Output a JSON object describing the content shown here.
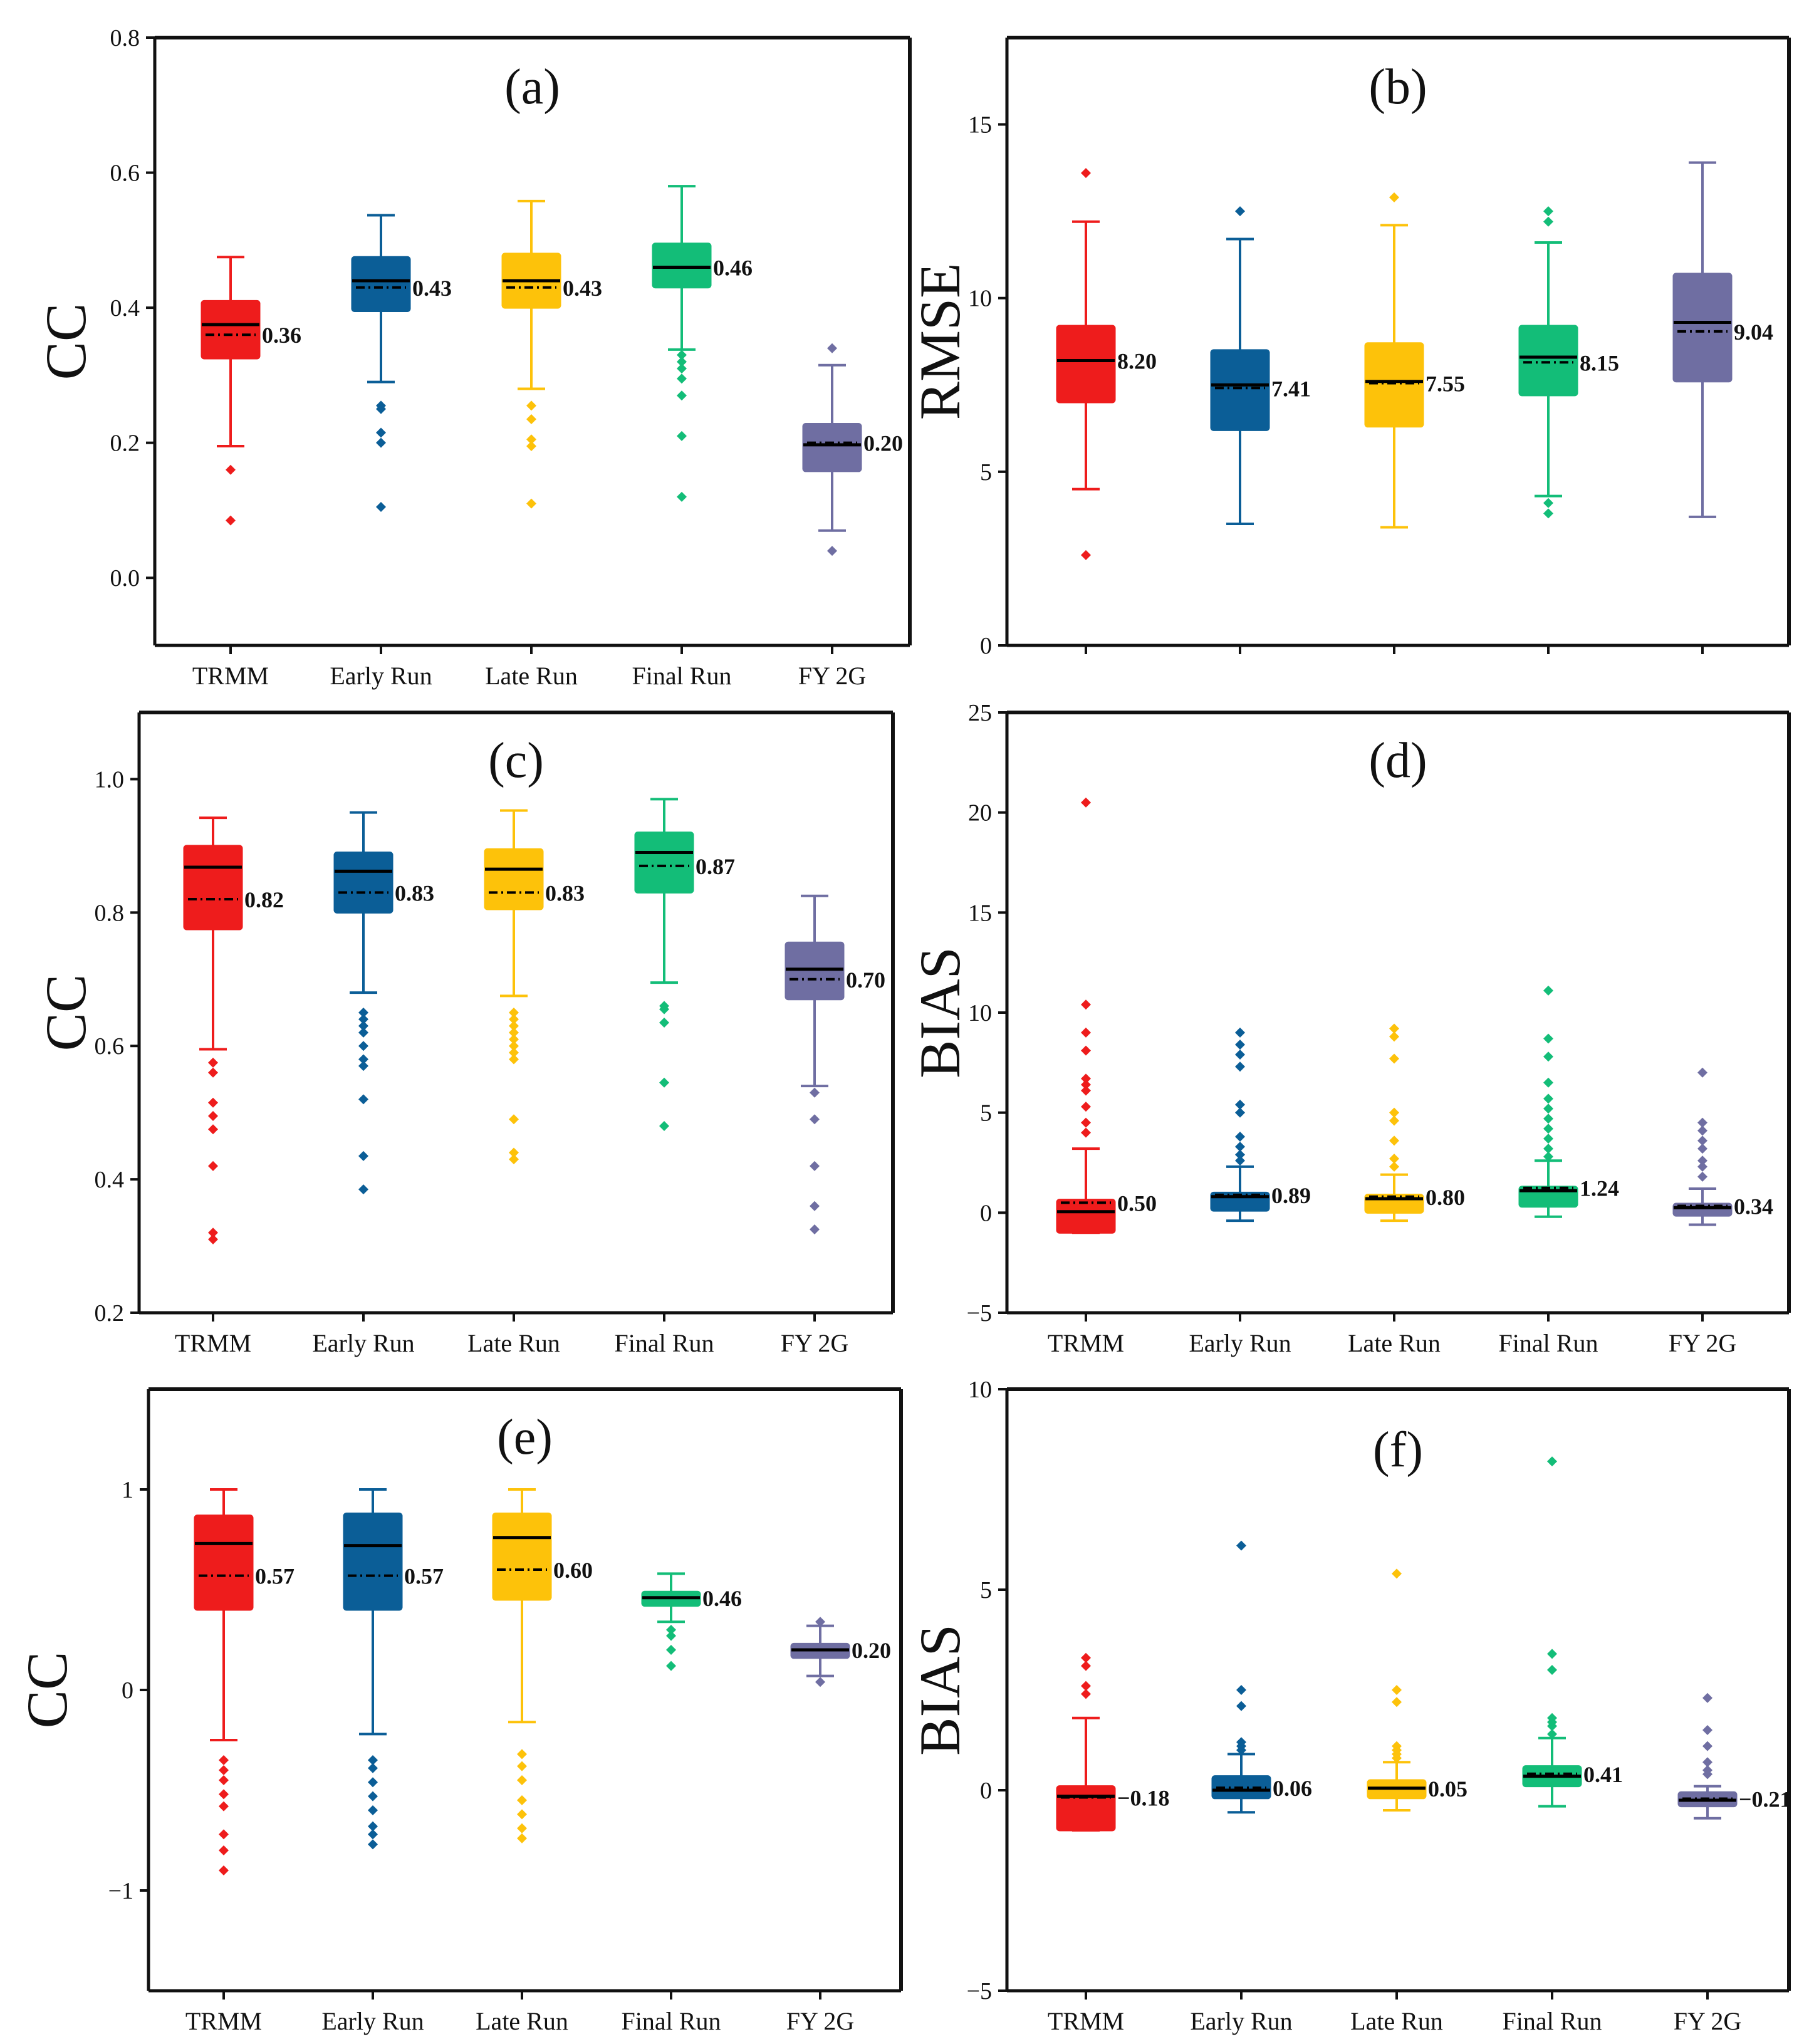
{
  "colors": {
    "TRMM": "#ee1c1c",
    "Early Run": "#0b5e97",
    "Late Run": "#fdc20a",
    "Final Run": "#13bd78",
    "FY 2G": "#6f6ea2"
  },
  "chart_data": [
    {
      "id": "a",
      "type": "box",
      "title": "(a)",
      "xlabel": "",
      "ylabel": "CC",
      "ylim": [
        -0.1,
        0.8
      ],
      "yticks": [
        0.0,
        0.2,
        0.4,
        0.6,
        0.8
      ],
      "ytick_labels": [
        "0.0",
        "0.2",
        "0.4",
        "0.6",
        "0.8"
      ],
      "ytick_side": "outer",
      "categories": [
        "TRMM",
        "Early Run",
        "Late Run",
        "Final Run",
        "FY 2G"
      ],
      "boxes": [
        {
          "q1": 0.325,
          "median": 0.375,
          "q3": 0.41,
          "whislo": 0.195,
          "whishi": 0.475,
          "mean": 0.36,
          "label": "0.36",
          "outliers": [
            0.16,
            0.085
          ]
        },
        {
          "q1": 0.395,
          "median": 0.44,
          "q3": 0.475,
          "whislo": 0.29,
          "whishi": 0.537,
          "mean": 0.43,
          "label": "0.43",
          "outliers": [
            0.255,
            0.25,
            0.215,
            0.2,
            0.105
          ]
        },
        {
          "q1": 0.4,
          "median": 0.44,
          "q3": 0.48,
          "whislo": 0.28,
          "whishi": 0.558,
          "mean": 0.43,
          "label": "0.43",
          "outliers": [
            0.255,
            0.235,
            0.205,
            0.195,
            0.11
          ]
        },
        {
          "q1": 0.43,
          "median": 0.46,
          "q3": 0.495,
          "whislo": 0.338,
          "whishi": 0.58,
          "mean": 0.46,
          "label": "0.46",
          "outliers": [
            0.33,
            0.32,
            0.31,
            0.295,
            0.27,
            0.21,
            0.12
          ]
        },
        {
          "q1": 0.158,
          "median": 0.197,
          "q3": 0.228,
          "whislo": 0.07,
          "whishi": 0.315,
          "mean": 0.2,
          "label": "0.20",
          "outliers": [
            0.34,
            0.04
          ]
        }
      ]
    },
    {
      "id": "b",
      "type": "box",
      "title": "(b)",
      "xlabel": "",
      "ylabel": "RMSE",
      "ylim": [
        0,
        17.5
      ],
      "yticks": [
        0,
        5,
        10,
        15
      ],
      "ytick_labels": [
        "0",
        "5",
        "10",
        "15"
      ],
      "ytick_side": "outer",
      "categories": [
        "",
        "",
        "",
        "",
        ""
      ],
      "boxes": [
        {
          "q1": 7.0,
          "median": 8.2,
          "q3": 9.2,
          "whislo": 4.5,
          "whishi": 12.2,
          "mean": 8.2,
          "label": "8.20",
          "outliers": [
            13.6,
            2.6
          ]
        },
        {
          "q1": 6.2,
          "median": 7.5,
          "q3": 8.5,
          "whislo": 3.5,
          "whishi": 11.7,
          "mean": 7.41,
          "label": "7.41",
          "outliers": [
            12.5
          ]
        },
        {
          "q1": 6.3,
          "median": 7.6,
          "q3": 8.7,
          "whislo": 3.4,
          "whishi": 12.1,
          "mean": 7.55,
          "label": "7.55",
          "outliers": [
            12.9
          ]
        },
        {
          "q1": 7.2,
          "median": 8.3,
          "q3": 9.2,
          "whislo": 4.3,
          "whishi": 11.6,
          "mean": 8.15,
          "label": "8.15",
          "outliers": [
            12.5,
            12.2,
            4.1,
            3.8
          ]
        },
        {
          "q1": 7.6,
          "median": 9.3,
          "q3": 10.7,
          "whislo": 3.7,
          "whishi": 13.9,
          "mean": 9.04,
          "label": "9.04",
          "outliers": []
        }
      ]
    },
    {
      "id": "c",
      "type": "box",
      "title": "(c)",
      "xlabel": "",
      "ylabel": "CC",
      "ylim": [
        0.2,
        1.1
      ],
      "yticks": [
        0.2,
        0.4,
        0.6,
        0.8,
        1.0
      ],
      "ytick_labels": [
        "0.2",
        "0.4",
        "0.6",
        "0.8",
        "1.0"
      ],
      "ytick_side": "outer",
      "categories": [
        "TRMM",
        "Early Run",
        "Late Run",
        "Final Run",
        "FY 2G"
      ],
      "boxes": [
        {
          "q1": 0.775,
          "median": 0.868,
          "q3": 0.9,
          "whislo": 0.595,
          "whishi": 0.942,
          "mean": 0.82,
          "label": "0.82",
          "outliers": [
            0.575,
            0.56,
            0.515,
            0.495,
            0.475,
            0.42,
            0.32,
            0.31
          ]
        },
        {
          "q1": 0.8,
          "median": 0.862,
          "q3": 0.89,
          "whislo": 0.68,
          "whishi": 0.95,
          "mean": 0.83,
          "label": "0.83",
          "outliers": [
            0.65,
            0.64,
            0.63,
            0.62,
            0.6,
            0.58,
            0.57,
            0.52,
            0.435,
            0.385
          ]
        },
        {
          "q1": 0.805,
          "median": 0.865,
          "q3": 0.895,
          "whislo": 0.675,
          "whishi": 0.953,
          "mean": 0.83,
          "label": "0.83",
          "outliers": [
            0.65,
            0.64,
            0.63,
            0.62,
            0.61,
            0.6,
            0.59,
            0.58,
            0.49,
            0.44,
            0.43
          ]
        },
        {
          "q1": 0.83,
          "median": 0.89,
          "q3": 0.92,
          "whislo": 0.695,
          "whishi": 0.97,
          "mean": 0.87,
          "label": "0.87",
          "outliers": [
            0.66,
            0.655,
            0.635,
            0.545,
            0.48
          ]
        },
        {
          "q1": 0.67,
          "median": 0.715,
          "q3": 0.755,
          "whislo": 0.54,
          "whishi": 0.825,
          "mean": 0.7,
          "label": "0.70",
          "outliers": [
            0.53,
            0.49,
            0.42,
            0.36,
            0.325
          ]
        }
      ]
    },
    {
      "id": "d",
      "type": "box",
      "title": "(d)",
      "xlabel": "",
      "ylabel": "BIAS",
      "ylim": [
        -5,
        25
      ],
      "yticks": [
        -5,
        0,
        5,
        10,
        15,
        20,
        25
      ],
      "ytick_labels": [
        "−5",
        "0",
        "5",
        "10",
        "15",
        "20",
        "25"
      ],
      "ytick_side": "outer",
      "categories": [
        "TRMM",
        "Early Run",
        "Late Run",
        "Final Run",
        "FY 2G"
      ],
      "boxes": [
        {
          "q1": -1.0,
          "median": 0.05,
          "q3": 0.65,
          "whislo": -1.0,
          "whishi": 3.2,
          "mean": 0.5,
          "label": "0.50",
          "outliers": [
            20.5,
            10.4,
            9.0,
            8.1,
            6.7,
            6.4,
            6.1,
            5.3,
            4.5,
            4.0
          ]
        },
        {
          "q1": 0.1,
          "median": 0.8,
          "q3": 1.0,
          "whislo": -0.4,
          "whishi": 2.3,
          "mean": 0.89,
          "label": "0.89",
          "outliers": [
            9.0,
            8.4,
            7.9,
            7.3,
            5.4,
            5.0,
            3.8,
            3.3,
            2.9,
            2.6
          ]
        },
        {
          "q1": 0.0,
          "median": 0.7,
          "q3": 0.9,
          "whislo": -0.4,
          "whishi": 1.9,
          "mean": 0.8,
          "label": "0.80",
          "outliers": [
            9.2,
            8.8,
            7.7,
            5.0,
            4.6,
            3.6,
            2.7,
            2.3
          ]
        },
        {
          "q1": 0.3,
          "median": 1.1,
          "q3": 1.3,
          "whislo": -0.2,
          "whishi": 2.6,
          "mean": 1.24,
          "label": "1.24",
          "outliers": [
            11.1,
            8.7,
            7.8,
            6.5,
            5.7,
            5.2,
            4.7,
            4.2,
            3.7,
            3.2,
            2.8
          ]
        },
        {
          "q1": -0.15,
          "median": 0.25,
          "q3": 0.45,
          "whislo": -0.6,
          "whishi": 1.2,
          "mean": 0.34,
          "label": "0.34",
          "outliers": [
            7.0,
            4.5,
            4.1,
            3.6,
            3.2,
            2.6,
            2.3,
            1.8
          ]
        }
      ]
    },
    {
      "id": "e",
      "type": "box",
      "title": "(e)",
      "xlabel": "",
      "ylabel": "CC",
      "ylim": [
        -1.5,
        1.5
      ],
      "yticks": [
        -1,
        0,
        1
      ],
      "ytick_labels": [
        "−1",
        "0",
        "1"
      ],
      "ytick_side": "outer",
      "categories": [
        "TRMM",
        "Early Run",
        "Late Run",
        "Final Run",
        "FY 2G"
      ],
      "boxes": [
        {
          "q1": 0.4,
          "median": 0.73,
          "q3": 0.87,
          "whislo": -0.25,
          "whishi": 1.0,
          "mean": 0.57,
          "label": "0.57",
          "outliers": [
            -0.35,
            -0.4,
            -0.45,
            -0.52,
            -0.58,
            -0.72,
            -0.8,
            -0.9
          ]
        },
        {
          "q1": 0.4,
          "median": 0.72,
          "q3": 0.88,
          "whislo": -0.22,
          "whishi": 1.0,
          "mean": 0.57,
          "label": "0.57",
          "outliers": [
            -0.35,
            -0.39,
            -0.46,
            -0.53,
            -0.6,
            -0.68,
            -0.72,
            -0.77
          ]
        },
        {
          "q1": 0.45,
          "median": 0.76,
          "q3": 0.88,
          "whislo": -0.16,
          "whishi": 1.0,
          "mean": 0.6,
          "label": "0.60",
          "outliers": [
            -0.32,
            -0.38,
            -0.45,
            -0.55,
            -0.62,
            -0.69,
            -0.74
          ]
        },
        {
          "q1": 0.42,
          "median": 0.46,
          "q3": 0.49,
          "whislo": 0.34,
          "whishi": 0.58,
          "mean": 0.46,
          "label": "0.46",
          "outliers": [
            0.3,
            0.27,
            0.2,
            0.12
          ]
        },
        {
          "q1": 0.16,
          "median": 0.2,
          "q3": 0.23,
          "whislo": 0.07,
          "whishi": 0.32,
          "mean": 0.2,
          "label": "0.20",
          "outliers": [
            0.34,
            0.04
          ]
        }
      ]
    },
    {
      "id": "f",
      "type": "box",
      "title": "(f)",
      "xlabel": "",
      "ylabel": "BIAS",
      "ylim": [
        -5,
        10
      ],
      "yticks": [
        -5,
        0,
        5,
        10
      ],
      "ytick_labels": [
        "−5",
        "0",
        "5",
        "10"
      ],
      "ytick_side": "outer",
      "categories": [
        "TRMM",
        "Early Run",
        "Late Run",
        "Final Run",
        "FY 2G"
      ],
      "boxes": [
        {
          "q1": -1.0,
          "median": -0.15,
          "q3": 0.1,
          "whislo": -1.0,
          "whishi": 1.8,
          "mean": -0.18,
          "label": "−0.18",
          "outliers": [
            3.3,
            3.1,
            2.6,
            2.4
          ]
        },
        {
          "q1": -0.2,
          "median": 0.0,
          "q3": 0.35,
          "whislo": -0.55,
          "whishi": 0.9,
          "mean": 0.06,
          "label": "0.06",
          "outliers": [
            6.1,
            2.5,
            2.1,
            1.2,
            1.1,
            1.0
          ]
        },
        {
          "q1": -0.2,
          "median": 0.05,
          "q3": 0.25,
          "whislo": -0.5,
          "whishi": 0.7,
          "mean": 0.05,
          "label": "0.05",
          "outliers": [
            5.4,
            2.5,
            2.2,
            1.1,
            1.0,
            0.9,
            0.8
          ]
        },
        {
          "q1": 0.1,
          "median": 0.35,
          "q3": 0.6,
          "whislo": -0.4,
          "whishi": 1.3,
          "mean": 0.41,
          "label": "0.41",
          "outliers": [
            8.2,
            3.4,
            3.0,
            1.8,
            1.7,
            1.6,
            1.4
          ]
        },
        {
          "q1": -0.4,
          "median": -0.25,
          "q3": -0.05,
          "whislo": -0.7,
          "whishi": 0.1,
          "mean": -0.21,
          "label": "−0.21",
          "outliers": [
            2.3,
            1.5,
            1.1,
            0.7,
            0.5,
            0.4
          ]
        }
      ]
    }
  ]
}
